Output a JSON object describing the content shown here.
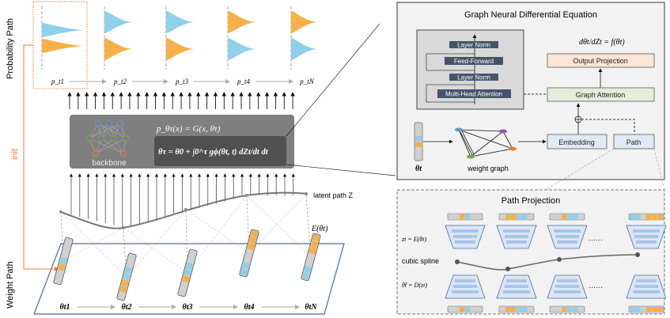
{
  "left": {
    "probability_path_label": "Probability Path",
    "weight_path_label": "Weight Path",
    "init_label": "init",
    "distribution_labels": [
      "p_t1",
      "p_t2",
      "p_t3",
      "p_t4",
      "p_tN"
    ],
    "backbone_label": "backbone",
    "generator_eq": "p_θτ(x) = G(x, θτ)",
    "integral_eq": "θτ = θ0 + ∫0^τ gϕ(θt, t) dZt/dt dt",
    "latent_path_label": "latent path Z",
    "encoder_label": "E(θt)",
    "weight_labels": [
      "θt1",
      "θt2",
      "θt3",
      "θt4",
      "θtN"
    ]
  },
  "gnde": {
    "title": "Graph Neural Differential Equation",
    "transformer_blocks": [
      "Layer Norm",
      "Feed-Forward",
      "Layer Norm",
      "Multi-Head Attention"
    ],
    "ode_eq": "dθt/dZt = f(θt)",
    "output_projection": "Output Projection",
    "graph_attention": "Graph Attention",
    "embedding": "Embedding",
    "path": "Path",
    "theta_label": "θt",
    "weight_graph_label": "weight graph"
  },
  "path_projection": {
    "title": "Path Projection",
    "encoder_eq": "zt = E(θt)",
    "spline_label": "cubic spline",
    "decoder_eq": "θ̂t = D(zt)",
    "ellipsis": "……"
  },
  "colors": {
    "blue": "#8fd0ea",
    "orange": "#f5b04a",
    "init": "#ed7d31",
    "frame": "#4a6aa6",
    "block": "#44546a"
  }
}
